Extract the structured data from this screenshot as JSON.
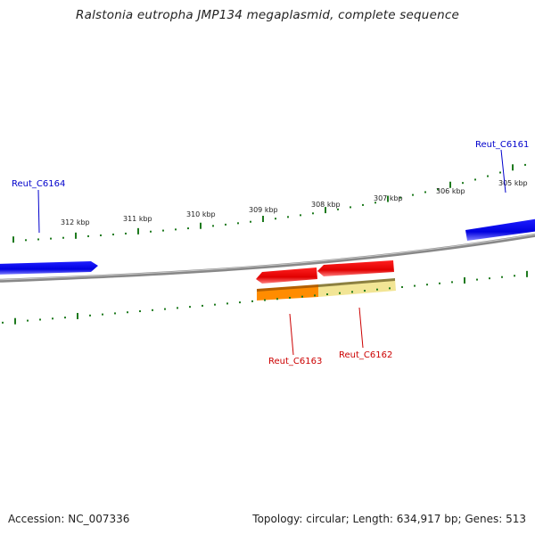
{
  "title": "Ralstonia eutropha JMP134 megaplasmid, complete sequence",
  "footer": {
    "accession": "Accession: NC_007336",
    "summary": "Topology: circular; Length: 634,917 bp; Genes: 513"
  },
  "colors": {
    "backbone": "#8a8a8a",
    "tick": "#1e7a1e",
    "forward_gene": "#0000ee",
    "reverse_gene": "#e60000",
    "forward_label": "#0000cc",
    "reverse_label": "#cc0000",
    "feature_orange": "#ff8c00",
    "feature_yellow": "#f0e08c"
  },
  "ticks": [
    {
      "label": "312 kbp"
    },
    {
      "label": "311 kbp"
    },
    {
      "label": "310 kbp"
    },
    {
      "label": "309 kbp"
    },
    {
      "label": "308 kbp"
    },
    {
      "label": "307 kbp"
    },
    {
      "label": "306 kbp"
    },
    {
      "label": "305 kbp"
    }
  ],
  "genes": [
    {
      "name": "Reut_C6164",
      "strand": "forward"
    },
    {
      "name": "Reut_C6161",
      "strand": "forward"
    },
    {
      "name": "Reut_C6163",
      "strand": "reverse"
    },
    {
      "name": "Reut_C6162",
      "strand": "reverse"
    }
  ]
}
